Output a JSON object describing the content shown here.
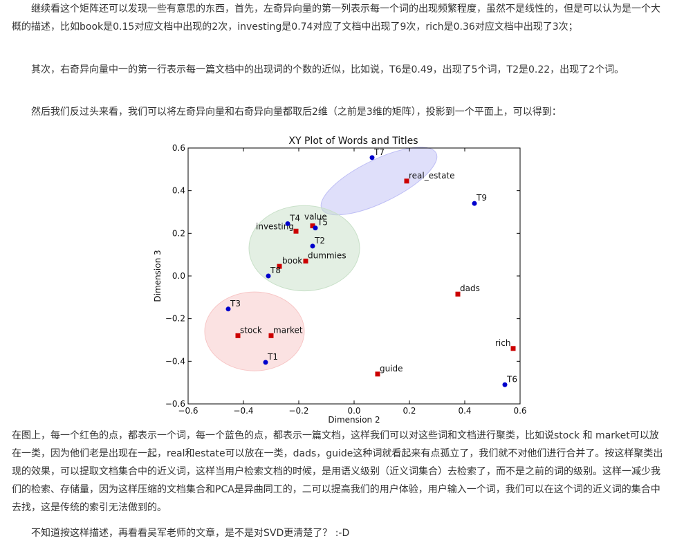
{
  "paragraphs": {
    "p1": "继续看这个矩阵还可以发现一些有意思的东西，首先，左奇异向量的第一列表示每一个词的出现频繁程度，虽然不是线性的，但是可以认为是一个大概的描述，比如book是0.15对应文档中出现的2次，investing是0.74对应了文档中出现了9次，rich是0.36对应文档中出现了3次；",
    "p2": "其次，右奇异向量中一的第一行表示每一篇文档中的出现词的个数的近似，比如说，T6是0.49，出现了5个词，T2是0.22，出现了2个词。",
    "p3": "然后我们反过头来看，我们可以将左奇异向量和右奇异向量都取后2维（之前是3维的矩阵），投影到一个平面上，可以得到：",
    "p4": "在图上，每一个红色的点，都表示一个词，每一个蓝色的点，都表示一篇文档，这样我们可以对这些词和文档进行聚类，比如说stock 和 market可以放在一类，因为他们老是出现在一起，real和estate可以放在一类，dads，guide这种词就看起来有点孤立了，我们就不对他们进行合并了。按这样聚类出现的效果，可以提取文档集合中的近义词，这样当用户检索文档的时候，是用语义级别（近义词集合）去检索了，而不是之前的词的级别。这样一减少我们的检索、存储量，因为这样压缩的文档集合和PCA是异曲同工的，二可以提高我们的用户体验，用户输入一个词，我们可以在这个词的近义词的集合中去找，这是传统的索引无法做到的。",
    "p5": "不知道按这样描述，再看看吴军老师的文章，是不是对SVD更清楚了？ :-D"
  },
  "chart_data": {
    "type": "scatter",
    "title": "XY Plot of Words and Titles",
    "xlabel": "Dimension 2",
    "ylabel": "Dimension 3",
    "xlim": [
      -0.6,
      0.6
    ],
    "ylim": [
      -0.6,
      0.6
    ],
    "x_ticks": [
      "−0.6",
      "−0.4",
      "−0.2",
      "0.0",
      "0.2",
      "0.4",
      "0.6"
    ],
    "y_ticks": [
      "−0.6",
      "−0.4",
      "−0.2",
      "0.0",
      "0.2",
      "0.4",
      "0.6"
    ],
    "grid": false,
    "colors": {
      "words": "#cc0000",
      "titles": "#0000cc"
    },
    "series": [
      {
        "kind": "words",
        "marker": "square",
        "points": [
          {
            "label": "real_estate",
            "x": 0.19,
            "y": 0.445
          },
          {
            "label": "value",
            "x": -0.15,
            "y": 0.235
          },
          {
            "label": "investing",
            "x": -0.21,
            "y": 0.21
          },
          {
            "label": "dummies",
            "x": -0.175,
            "y": 0.07
          },
          {
            "label": "book",
            "x": -0.27,
            "y": 0.045
          },
          {
            "label": "dads",
            "x": 0.375,
            "y": -0.085
          },
          {
            "label": "stock",
            "x": -0.42,
            "y": -0.28
          },
          {
            "label": "market",
            "x": -0.3,
            "y": -0.28
          },
          {
            "label": "rich",
            "x": 0.575,
            "y": -0.34
          },
          {
            "label": "guide",
            "x": 0.085,
            "y": -0.46
          }
        ]
      },
      {
        "kind": "titles",
        "marker": "circle",
        "points": [
          {
            "label": "T7",
            "x": 0.065,
            "y": 0.555
          },
          {
            "label": "T9",
            "x": 0.435,
            "y": 0.34
          },
          {
            "label": "T4",
            "x": -0.24,
            "y": 0.245
          },
          {
            "label": "T5",
            "x": -0.14,
            "y": 0.225
          },
          {
            "label": "T2",
            "x": -0.15,
            "y": 0.14
          },
          {
            "label": "T8",
            "x": -0.31,
            "y": 0.0
          },
          {
            "label": "T3",
            "x": -0.455,
            "y": -0.155
          },
          {
            "label": "T1",
            "x": -0.32,
            "y": -0.405
          },
          {
            "label": "T6",
            "x": 0.545,
            "y": -0.51
          }
        ]
      }
    ],
    "clusters": [
      {
        "cx": 0.09,
        "cy": 0.445,
        "rx": 0.23,
        "ry": 0.1,
        "angle": -26,
        "color": "#bfbff5"
      },
      {
        "cx": -0.18,
        "cy": 0.13,
        "rx": 0.2,
        "ry": 0.2,
        "angle": 0,
        "color": "#c8e0c8"
      },
      {
        "cx": -0.36,
        "cy": -0.26,
        "rx": 0.18,
        "ry": 0.185,
        "angle": 0,
        "color": "#f7c6c6"
      }
    ]
  }
}
